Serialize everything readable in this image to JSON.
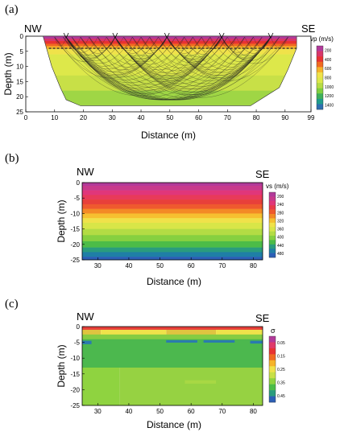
{
  "chart_data": [
    {
      "type": "heatmap",
      "panel_label": "(a)",
      "left_label": "NW",
      "right_label": "SE",
      "xlabel": "Distance (m)",
      "ylabel": "Depth (m)",
      "xlim": [
        0,
        99
      ],
      "ylim": [
        0,
        25
      ],
      "x_ticks": [
        "0",
        "10",
        "20",
        "30",
        "40",
        "50",
        "60",
        "70",
        "80",
        "90",
        "99"
      ],
      "x_tick_values": [
        0,
        10,
        20,
        30,
        40,
        50,
        60,
        70,
        80,
        90,
        99
      ],
      "y_ticks": [
        "0",
        "5",
        "10",
        "15",
        "20",
        "25"
      ],
      "y_tick_values": [
        0,
        5,
        10,
        15,
        20,
        25
      ],
      "colorbar": {
        "title": "vp (m/s)",
        "ticks": [
          "200",
          "400",
          "600",
          "800",
          "1000",
          "1200",
          "1400"
        ],
        "colors": [
          "#b23a9a",
          "#d8366a",
          "#e83232",
          "#f06a22",
          "#f6b32a",
          "#f0e24a",
          "#dde84a",
          "#b7dc44",
          "#7fcf3f",
          "#3fb05a",
          "#1f9c8c",
          "#2d6fb0"
        ]
      },
      "sources": [
        14,
        31,
        49,
        68,
        85
      ],
      "dashed_line_depth": 4,
      "bottom_outline": [
        [
          6,
          0
        ],
        [
          9,
          10
        ],
        [
          12,
          17
        ],
        [
          14,
          21
        ],
        [
          19,
          23
        ],
        [
          30,
          23
        ],
        [
          60,
          23
        ],
        [
          78,
          23
        ],
        [
          88,
          17
        ],
        [
          91,
          11
        ],
        [
          94,
          4
        ],
        [
          94,
          0
        ]
      ],
      "layers": [
        {
          "depth": [
            0,
            0.8
          ],
          "color": "#b23a9a"
        },
        {
          "depth": [
            0.8,
            1.6
          ],
          "color": "#d8366a"
        },
        {
          "depth": [
            1.6,
            2.5
          ],
          "color": "#e83232"
        },
        {
          "depth": [
            2.5,
            3.3
          ],
          "color": "#f06a22"
        },
        {
          "depth": [
            3.3,
            4.2
          ],
          "color": "#f6b32a"
        },
        {
          "depth": [
            4.2,
            6
          ],
          "color": "#f0e24a"
        },
        {
          "depth": [
            6,
            13
          ],
          "color": "#dde84a"
        },
        {
          "depth": [
            13,
            18
          ],
          "color": "#c8e047"
        },
        {
          "depth": [
            18,
            25
          ],
          "color": "#9fd645"
        }
      ]
    },
    {
      "type": "heatmap",
      "panel_label": "(b)",
      "left_label": "NW",
      "right_label": "SE",
      "xlabel": "Distance (m)",
      "ylabel": "Depth (m)",
      "xlim": [
        25,
        83
      ],
      "ylim": [
        -25,
        0
      ],
      "x_ticks": [
        "30",
        "40",
        "50",
        "60",
        "70",
        "80"
      ],
      "x_tick_values": [
        30,
        40,
        50,
        60,
        70,
        80
      ],
      "y_ticks": [
        "0",
        "-5",
        "-10",
        "-15",
        "-20",
        "-25"
      ],
      "y_tick_values": [
        0,
        -5,
        -10,
        -15,
        -20,
        -25
      ],
      "colorbar": {
        "title": "vs (m/s)",
        "ticks": [
          "200",
          "240",
          "280",
          "320",
          "360",
          "400",
          "440",
          "480"
        ],
        "colors": [
          "#b23a9a",
          "#c83a8c",
          "#e0367a",
          "#e83a4a",
          "#ef5a2e",
          "#f38a26",
          "#f6c030",
          "#f0e24a",
          "#d8e648",
          "#b3dc44",
          "#86d040",
          "#4cbc48",
          "#2a9c7e",
          "#1f7fa6",
          "#2c5fb6"
        ]
      },
      "layers": [
        {
          "depth": [
            0,
            -1
          ],
          "color": "#b23a9a"
        },
        {
          "depth": [
            -1,
            -2.5
          ],
          "color": "#c83a8c"
        },
        {
          "depth": [
            -2.5,
            -4
          ],
          "color": "#e0367a"
        },
        {
          "depth": [
            -4,
            -5.5
          ],
          "color": "#e83a5a"
        },
        {
          "depth": [
            -5.5,
            -7
          ],
          "color": "#e8403a"
        },
        {
          "depth": [
            -7,
            -8.5
          ],
          "color": "#ef5a2e"
        },
        {
          "depth": [
            -8.5,
            -10
          ],
          "color": "#f38a26"
        },
        {
          "depth": [
            -10,
            -11.5
          ],
          "color": "#f6c030"
        },
        {
          "depth": [
            -11.5,
            -13
          ],
          "color": "#f0e24a"
        },
        {
          "depth": [
            -13,
            -15
          ],
          "color": "#d8e648"
        },
        {
          "depth": [
            -15,
            -17
          ],
          "color": "#b3dc44"
        },
        {
          "depth": [
            -17,
            -19
          ],
          "color": "#86d040"
        },
        {
          "depth": [
            -19,
            -21
          ],
          "color": "#4cbc48"
        },
        {
          "depth": [
            -21,
            -22.5
          ],
          "color": "#2a9c7e"
        },
        {
          "depth": [
            -22.5,
            -24
          ],
          "color": "#1f7fa6"
        },
        {
          "depth": [
            -24,
            -25
          ],
          "color": "#2c5fb6"
        }
      ]
    },
    {
      "type": "heatmap",
      "panel_label": "(c)",
      "left_label": "NW",
      "right_label": "SE",
      "xlabel": "Distance (m)",
      "ylabel": "Depth (m)",
      "xlim": [
        25,
        83
      ],
      "ylim": [
        -25,
        0
      ],
      "x_ticks": [
        "30",
        "40",
        "50",
        "60",
        "70",
        "80"
      ],
      "x_tick_values": [
        30,
        40,
        50,
        60,
        70,
        80
      ],
      "y_ticks": [
        "0",
        "-5",
        "-10",
        "-15",
        "-20",
        "-25"
      ],
      "y_tick_values": [
        0,
        -5,
        -10,
        -15,
        -20,
        -25
      ],
      "colorbar": {
        "title": "σ",
        "ticks": [
          "0.05",
          "0.15",
          "0.25",
          "0.35",
          "0.45"
        ],
        "colors": [
          "#b23a9a",
          "#e03a6a",
          "#e83232",
          "#f06a22",
          "#f6b32a",
          "#f0e24a",
          "#c8e047",
          "#8fd340",
          "#4cbc48",
          "#2a9c7e",
          "#2c5fb6"
        ]
      },
      "blocks": [
        {
          "x": [
            25,
            83
          ],
          "depth": [
            0,
            -1
          ],
          "color": "#e8403a"
        },
        {
          "x": [
            25,
            31
          ],
          "depth": [
            -1,
            -2.5
          ],
          "color": "#e0c440"
        },
        {
          "x": [
            31,
            52
          ],
          "depth": [
            -1,
            -2.5
          ],
          "color": "#f0e24a"
        },
        {
          "x": [
            52,
            68
          ],
          "depth": [
            -1,
            -2.5
          ],
          "color": "#e0c440"
        },
        {
          "x": [
            68,
            83
          ],
          "depth": [
            -1,
            -2.5
          ],
          "color": "#f0e24a"
        },
        {
          "x": [
            25,
            83
          ],
          "depth": [
            -2.5,
            -4
          ],
          "color": "#86cc42"
        },
        {
          "x": [
            25,
            83
          ],
          "depth": [
            -4,
            -13
          ],
          "color": "#4cb84e"
        },
        {
          "x": [
            25,
            28
          ],
          "depth": [
            -4.5,
            -5.5
          ],
          "color": "#2a7ab0"
        },
        {
          "x": [
            52,
            62
          ],
          "depth": [
            -4.3,
            -5.0
          ],
          "color": "#2a7ab0"
        },
        {
          "x": [
            64,
            74
          ],
          "depth": [
            -4.3,
            -5.0
          ],
          "color": "#2a7ab0"
        },
        {
          "x": [
            79,
            83
          ],
          "depth": [
            -4.5,
            -5.3
          ],
          "color": "#2a7ab0"
        },
        {
          "x": [
            25,
            37
          ],
          "depth": [
            -13,
            -25
          ],
          "color": "#8fd340"
        },
        {
          "x": [
            37,
            83
          ],
          "depth": [
            -13,
            -25
          ],
          "color": "#96d242"
        },
        {
          "x": [
            58,
            68
          ],
          "depth": [
            -17,
            -18
          ],
          "color": "#a8d844"
        }
      ]
    }
  ]
}
